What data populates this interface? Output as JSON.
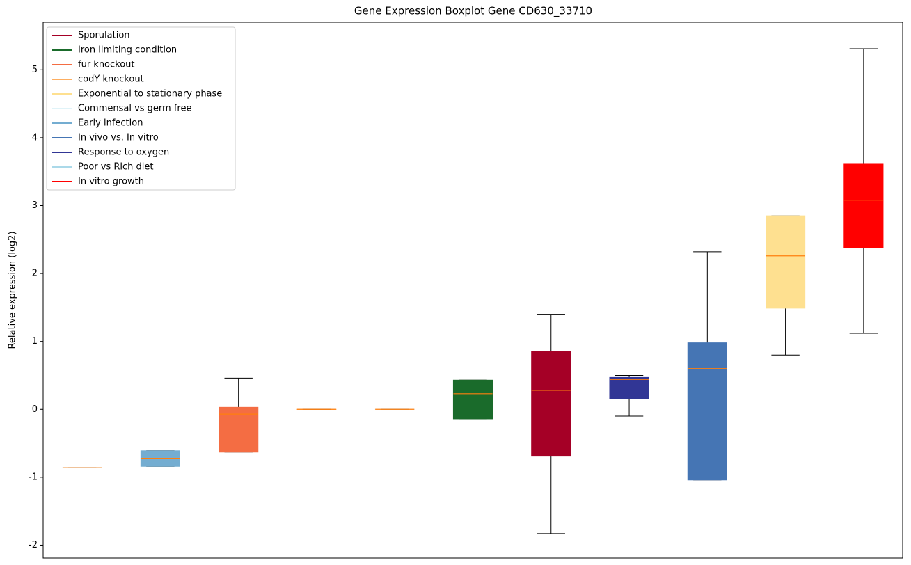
{
  "chart_data": {
    "type": "box",
    "title": "Gene Expression Boxplot Gene CD630_33710",
    "ylabel": "Relative expression (log2)",
    "ylim": [
      -2.19,
      5.7
    ],
    "yticks": [
      -2,
      -1,
      0,
      1,
      2,
      3,
      4,
      5
    ],
    "legend_position": "upper left",
    "median_color": "#ff7f0e",
    "legend": [
      {
        "name": "Sporulation",
        "color": "#a50026"
      },
      {
        "name": "Iron limiting condition",
        "color": "#1a6b2b"
      },
      {
        "name": "fur knockout",
        "color": "#f46d43"
      },
      {
        "name": "codY knockout",
        "color": "#fdae61"
      },
      {
        "name": "Exponential to stationary phase",
        "color": "#fee090"
      },
      {
        "name": "Commensal vs germ free",
        "color": "#e0f3f8"
      },
      {
        "name": "Early infection",
        "color": "#74add1"
      },
      {
        "name": "In vivo vs. In vitro",
        "color": "#4575b4"
      },
      {
        "name": "Response to oxygen",
        "color": "#313695"
      },
      {
        "name": "Poor vs Rich diet",
        "color": "#abd9e9"
      },
      {
        "name": "In vitro growth",
        "color": "#ff0000"
      }
    ],
    "boxes": [
      {
        "color": "#abd9e9",
        "whislo": -0.86,
        "q1": -0.86,
        "med": -0.86,
        "q3": -0.86,
        "whishi": -0.86
      },
      {
        "color": "#74add1",
        "whislo": -0.84,
        "q1": -0.84,
        "med": -0.72,
        "q3": -0.61,
        "whishi": -0.61
      },
      {
        "color": "#f46d43",
        "whislo": -0.63,
        "q1": -0.63,
        "med": -0.07,
        "q3": 0.03,
        "whishi": 0.46
      },
      {
        "color": "#fdae61",
        "whislo": 0,
        "q1": 0,
        "med": 0,
        "q3": 0,
        "whishi": 0
      },
      {
        "color": "#e0f3f8",
        "whislo": 0,
        "q1": 0,
        "med": 0,
        "q3": 0,
        "whishi": 0
      },
      {
        "color": "#1a6b2b",
        "whislo": -0.14,
        "q1": -0.14,
        "med": 0.23,
        "q3": 0.43,
        "whishi": 0.43
      },
      {
        "color": "#a50026",
        "whislo": -1.83,
        "q1": -0.69,
        "med": 0.28,
        "q3": 0.85,
        "whishi": 1.4
      },
      {
        "color": "#313695",
        "whislo": -0.1,
        "q1": 0.16,
        "med": 0.44,
        "q3": 0.47,
        "whishi": 0.5
      },
      {
        "color": "#4575b4",
        "whislo": -1.04,
        "q1": -1.04,
        "med": 0.6,
        "q3": 0.98,
        "whishi": 2.32
      },
      {
        "color": "#fee090",
        "whislo": 0.8,
        "q1": 1.49,
        "med": 2.26,
        "q3": 2.85,
        "whishi": 2.85
      },
      {
        "color": "#ff0000",
        "whislo": 1.12,
        "q1": 2.38,
        "med": 3.08,
        "q3": 3.62,
        "whishi": 5.31
      }
    ]
  }
}
